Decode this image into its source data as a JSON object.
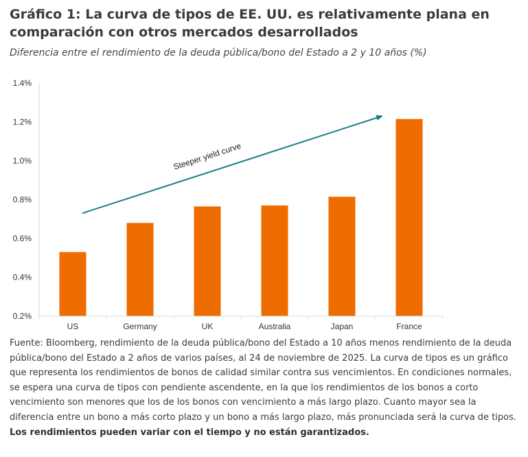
{
  "title": "Gráfico 1: La curva de tipos de EE. UU. es relativamente plana en comparación con otros mercados desarrollados",
  "subtitle": "Diferencia entre el rendimiento de la deuda pública/bono del Estado a 2 y 10 años (%)",
  "chart_data": {
    "type": "bar",
    "title": "",
    "xlabel": "",
    "ylabel": "",
    "categories": [
      "US",
      "Germany",
      "UK",
      "Australia",
      "Japan",
      "France"
    ],
    "values": [
      0.53,
      0.68,
      0.765,
      0.77,
      0.815,
      1.215
    ],
    "ylim": [
      0.2,
      1.4
    ],
    "yticks": [
      0.2,
      0.4,
      0.6,
      0.8,
      1.0,
      1.2,
      1.4
    ],
    "ytick_labels": [
      "0.2%",
      "0.4%",
      "0.6%",
      "0.8%",
      "1.0%",
      "1.2%",
      "1.4%"
    ],
    "grid": false,
    "bar_color": "#ef6c00",
    "annotation": {
      "text": "Steeper yield curve",
      "arrow_color": "#1a7a8a",
      "from": {
        "category": "US",
        "value": 0.73
      },
      "to": {
        "category": "France",
        "value": 1.23
      }
    }
  },
  "footnote": {
    "text": "Fuente: Bloomberg, rendimiento de la deuda pública/bono del Estado a 10 años menos rendimiento de la deuda pública/bono del Estado a 2 años de varios países, al 24 de noviembre de 2025. La curva de tipos es un gráfico que representa los rendimientos de bonos de calidad similar contra sus vencimientos. En condiciones normales, se espera una curva de tipos con pendiente ascendente, en la que los rendimientos de los bonos a corto vencimiento son menores que los de los bonos con vencimiento a más largo plazo. Cuanto mayor sea la diferencia entre un bono a más corto plazo y un bono a más largo plazo, más pronunciada será la curva de tipos. ",
    "bold_text": "Los rendimientos pueden variar con el tiempo y no están garantizados."
  }
}
